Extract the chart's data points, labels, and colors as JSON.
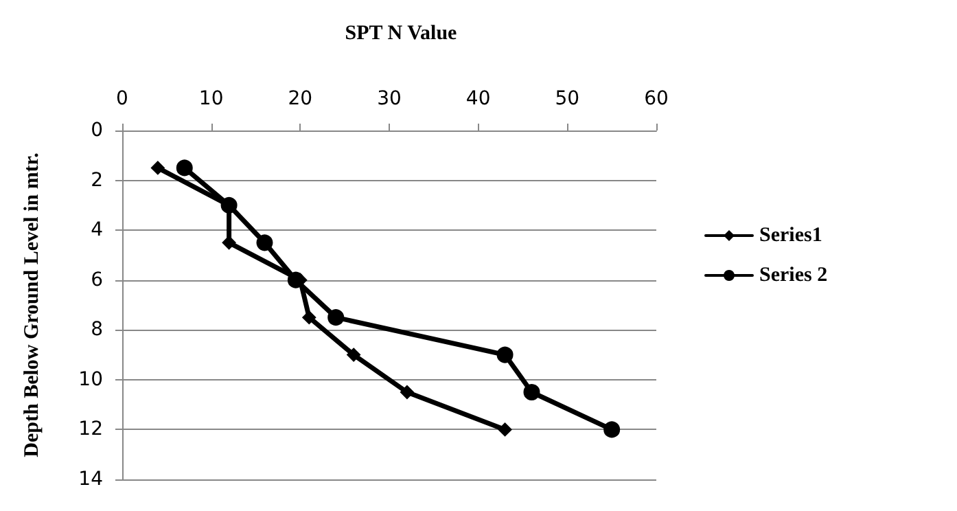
{
  "chart_data": {
    "type": "line",
    "title": "SPT N Value",
    "ylabel": "Depth Below Ground Level in mtr.",
    "xlim": [
      0,
      60
    ],
    "xticks": [
      0,
      10,
      20,
      30,
      40,
      50,
      60
    ],
    "ylim": [
      14,
      0
    ],
    "yticks": [
      0,
      2,
      4,
      6,
      8,
      10,
      12,
      14
    ],
    "grid": "y",
    "legend": "right",
    "line_style": "solid",
    "series": [
      {
        "name": "Series1",
        "color": "#000000",
        "marker": "diamond",
        "x": [
          4,
          12,
          12,
          20,
          21,
          26,
          32,
          43
        ],
        "values": [
          1.5,
          3,
          4.5,
          6,
          7.5,
          9,
          10.5,
          12
        ]
      },
      {
        "name": "Series 2",
        "color": "#000000",
        "marker": "circle",
        "x": [
          7,
          12,
          16,
          19.5,
          24,
          43,
          46,
          55
        ],
        "values": [
          1.5,
          3,
          4.5,
          6,
          7.5,
          9,
          10.5,
          12
        ]
      }
    ]
  }
}
